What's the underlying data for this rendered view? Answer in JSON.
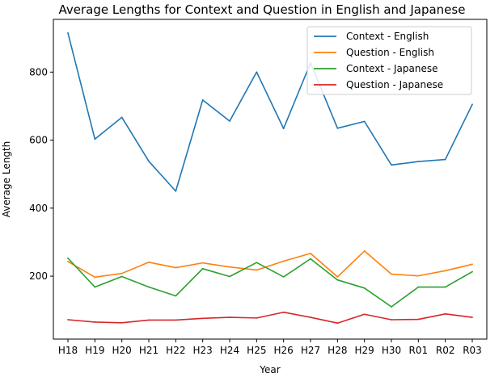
{
  "chart_data": {
    "type": "line",
    "title": "Average Lengths for Context and Question in English and Japanese",
    "xlabel": "Year",
    "ylabel": "Average Length",
    "categories": [
      "H18",
      "H19",
      "H20",
      "H21",
      "H22",
      "H23",
      "H24",
      "H25",
      "H26",
      "H27",
      "H28",
      "H29",
      "H30",
      "R01",
      "R02",
      "R03"
    ],
    "yticks": [
      200,
      400,
      600,
      800
    ],
    "ylim": [
      15,
      955
    ],
    "grid": false,
    "legend_position": "top-right",
    "series": [
      {
        "name": "Context - English",
        "color": "#1f77b4",
        "values": [
          915,
          603,
          667,
          538,
          450,
          718,
          656,
          800,
          634,
          827,
          635,
          655,
          527,
          537,
          543,
          705
        ]
      },
      {
        "name": "Question - English",
        "color": "#ff7f0e",
        "values": [
          243,
          197,
          208,
          241,
          225,
          239,
          227,
          218,
          244,
          267,
          198,
          274,
          206,
          201,
          216,
          235
        ]
      },
      {
        "name": "Context - Japanese",
        "color": "#2ca02c",
        "values": [
          253,
          168,
          199,
          168,
          142,
          222,
          199,
          240,
          198,
          251,
          189,
          165,
          110,
          168,
          168,
          213
        ]
      },
      {
        "name": "Question - Japanese",
        "color": "#d62728",
        "values": [
          72,
          65,
          63,
          71,
          71,
          76,
          79,
          77,
          94,
          79,
          62,
          88,
          72,
          73,
          89,
          79
        ]
      }
    ]
  }
}
